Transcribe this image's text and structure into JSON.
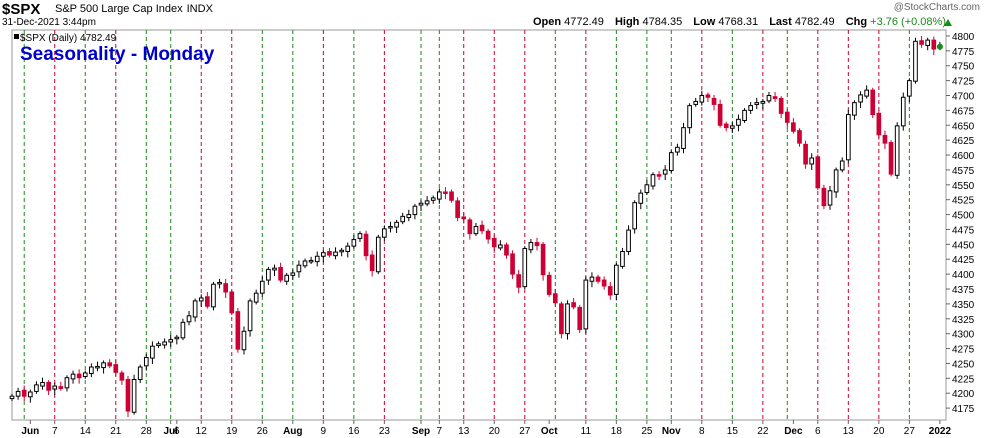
{
  "header": {
    "symbol": "$SPX",
    "description": "S&P 500 Large Cap Index",
    "exchange": "INDX",
    "watermark": "@StockCharts.com",
    "timestamp": "31-Dec-2021 3:44pm",
    "ohlc": {
      "open_label": "Open",
      "open": "4772.49",
      "high_label": "High",
      "high": "4784.35",
      "low_label": "Low",
      "low": "4768.31",
      "last_label": "Last",
      "last": "4782.49",
      "chg_label": "Chg",
      "chg": "+3.76 (+0.08%)"
    },
    "arrow_color": "#1a8a1a"
  },
  "chart_data": {
    "type": "candlestick",
    "title": "Seasonality - Monday",
    "legend": "$SPX (Daily) 4782.49",
    "colors": {
      "up": "#000000",
      "down": "#cc0033",
      "monday_line": "#cc0033",
      "weekly_line": "#1a8a1a",
      "title": "#0000cc"
    },
    "ylim": [
      4155,
      4810
    ],
    "yticks": [
      4175,
      4200,
      4225,
      4250,
      4275,
      4300,
      4325,
      4350,
      4375,
      4400,
      4425,
      4450,
      4475,
      4500,
      4525,
      4550,
      4575,
      4600,
      4625,
      4650,
      4675,
      4700,
      4725,
      4750,
      4775,
      4800
    ],
    "xlim": [
      0,
      153
    ],
    "xticks": [
      {
        "label": "Jun",
        "x": 3
      },
      {
        "label": "7",
        "x": 7
      },
      {
        "label": "14",
        "x": 12
      },
      {
        "label": "21",
        "x": 17
      },
      {
        "label": "28",
        "x": 22
      },
      {
        "label": "Jul",
        "x": 26
      },
      {
        "label": "6",
        "x": 27
      },
      {
        "label": "12",
        "x": 31
      },
      {
        "label": "19",
        "x": 36
      },
      {
        "label": "26",
        "x": 41
      },
      {
        "label": "Aug",
        "x": 46
      },
      {
        "label": "9",
        "x": 51
      },
      {
        "label": "16",
        "x": 56
      },
      {
        "label": "23",
        "x": 61
      },
      {
        "label": "Sep",
        "x": 67
      },
      {
        "label": "7",
        "x": 70
      },
      {
        "label": "13",
        "x": 74
      },
      {
        "label": "20",
        "x": 79
      },
      {
        "label": "27",
        "x": 84
      },
      {
        "label": "Oct",
        "x": 88
      },
      {
        "label": "11",
        "x": 94
      },
      {
        "label": "18",
        "x": 99
      },
      {
        "label": "25",
        "x": 104
      },
      {
        "label": "Nov",
        "x": 108
      },
      {
        "label": "8",
        "x": 113
      },
      {
        "label": "15",
        "x": 118
      },
      {
        "label": "22",
        "x": 123
      },
      {
        "label": "Dec",
        "x": 128
      },
      {
        "label": "6",
        "x": 132
      },
      {
        "label": "13",
        "x": 137
      },
      {
        "label": "20",
        "x": 142
      },
      {
        "label": "27",
        "x": 147
      },
      {
        "label": "2022",
        "x": 152
      }
    ],
    "monday_lines": [
      7,
      17,
      31,
      36,
      51,
      61,
      74,
      79,
      84,
      94,
      113,
      123,
      132,
      137,
      142
    ],
    "weekly_lines": [
      2,
      12,
      22,
      26,
      41,
      46,
      56,
      67,
      70,
      89,
      99,
      104,
      108,
      118,
      127,
      147
    ],
    "close": [
      4195,
      4203,
      4195,
      4202,
      4214,
      4218,
      4205,
      4212,
      4208,
      4226,
      4232,
      4226,
      4234,
      4244,
      4245,
      4251,
      4246,
      4235,
      4222,
      4170,
      4223,
      4244,
      4260,
      4279,
      4283,
      4286,
      4290,
      4294,
      4319,
      4330,
      4355,
      4360,
      4346,
      4383,
      4386,
      4370,
      4335,
      4274,
      4304,
      4355,
      4368,
      4388,
      4408,
      4410,
      4390,
      4398,
      4402,
      4415,
      4422,
      4423,
      4430,
      4436,
      4432,
      4437,
      4440,
      4447,
      4458,
      4468,
      4431,
      4406,
      4462,
      4476,
      4480,
      4487,
      4497,
      4500,
      4514,
      4519,
      4523,
      4528,
      4538,
      4536,
      4524,
      4495,
      4493,
      4468,
      4480,
      4473,
      4459,
      4446,
      4449,
      4432,
      4400,
      4378,
      4443,
      4453,
      4448,
      4399,
      4366,
      4352,
      4300,
      4350,
      4345,
      4307,
      4390,
      4395,
      4388,
      4380,
      4365,
      4415,
      4438,
      4474,
      4520,
      4536,
      4550,
      4567,
      4566,
      4575,
      4604,
      4613,
      4646,
      4683,
      4690,
      4700,
      4697,
      4685,
      4650,
      4646,
      4649,
      4660,
      4675,
      4683,
      4688,
      4690,
      4700,
      4695,
      4670,
      4655,
      4640,
      4620,
      4585,
      4595,
      4545,
      4515,
      4540,
      4575,
      4590,
      4668,
      4688,
      4701,
      4709,
      4668,
      4634,
      4620,
      4568,
      4649,
      4697,
      4725,
      4791,
      4786,
      4793,
      4778,
      4782
    ]
  }
}
